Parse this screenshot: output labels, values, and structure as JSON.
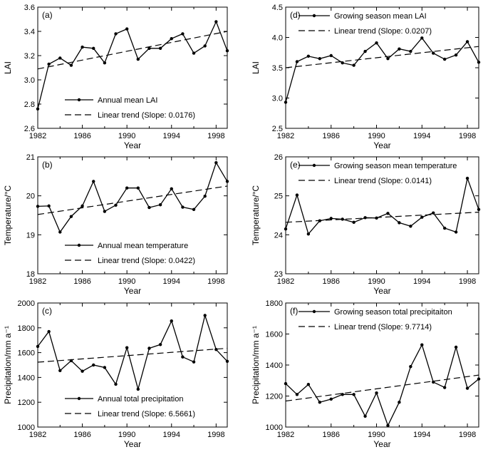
{
  "chart_data": [
    {
      "panel": "(a)",
      "type": "line",
      "xlabel": "Year",
      "ylabel": "LAI",
      "xlim": [
        1982,
        1999
      ],
      "ylim": [
        2.6,
        3.6
      ],
      "xticks": [
        "1982",
        "1986",
        "1990",
        "1994",
        "1998"
      ],
      "yticks": [
        "2.6",
        "2.8",
        "3.0",
        "3.2",
        "3.4",
        "3.6"
      ],
      "legend_position": "bottom-right",
      "series": [
        {
          "name": "Annual mean LAI",
          "style": "line-marker",
          "x": [
            1982,
            1983,
            1984,
            1985,
            1986,
            1987,
            1988,
            1989,
            1990,
            1991,
            1992,
            1993,
            1994,
            1995,
            1996,
            1997,
            1998,
            1999
          ],
          "y": [
            2.76,
            3.13,
            3.18,
            3.12,
            3.27,
            3.26,
            3.14,
            3.38,
            3.42,
            3.17,
            3.26,
            3.26,
            3.34,
            3.38,
            3.22,
            3.28,
            3.48,
            3.24
          ]
        },
        {
          "name": "Linear trend (Slope: 0.0176)",
          "style": "dashed",
          "x": [
            1982,
            1999
          ],
          "y": [
            3.09,
            3.4
          ]
        }
      ]
    },
    {
      "panel": "(d)",
      "type": "line",
      "xlabel": "Year",
      "ylabel": "LAI",
      "xlim": [
        1982,
        1999
      ],
      "ylim": [
        2.5,
        4.5
      ],
      "xticks": [
        "1982",
        "1986",
        "1990",
        "1994",
        "1998"
      ],
      "yticks": [
        "2.5",
        "3.0",
        "3.5",
        "4.0",
        "4.5"
      ],
      "legend_position": "top-right",
      "series": [
        {
          "name": "Growing season mean LAI",
          "style": "line-marker",
          "x": [
            1982,
            1983,
            1984,
            1985,
            1986,
            1987,
            1988,
            1989,
            1990,
            1991,
            1992,
            1993,
            1994,
            1995,
            1996,
            1997,
            1998,
            1999
          ],
          "y": [
            2.93,
            3.6,
            3.69,
            3.65,
            3.7,
            3.58,
            3.54,
            3.77,
            3.91,
            3.65,
            3.81,
            3.77,
            3.99,
            3.74,
            3.64,
            3.71,
            3.93,
            3.59
          ]
        },
        {
          "name": "Linear trend (Slope: 0.0207)",
          "style": "dashed",
          "x": [
            1982,
            1999
          ],
          "y": [
            3.5,
            3.85
          ]
        }
      ]
    },
    {
      "panel": "(b)",
      "type": "line",
      "xlabel": "Year",
      "ylabel": "Temperature/°C",
      "xlim": [
        1982,
        1999
      ],
      "ylim": [
        18,
        21
      ],
      "xticks": [
        "1982",
        "1986",
        "1990",
        "1994",
        "1998"
      ],
      "yticks": [
        "18",
        "19",
        "20",
        "21"
      ],
      "legend_position": "bottom-right",
      "series": [
        {
          "name": "Annual mean temperature",
          "style": "line-marker",
          "x": [
            1982,
            1983,
            1984,
            1985,
            1986,
            1987,
            1988,
            1989,
            1990,
            1991,
            1992,
            1993,
            1994,
            1995,
            1996,
            1997,
            1998,
            1999
          ],
          "y": [
            19.73,
            19.74,
            19.07,
            19.47,
            19.74,
            20.37,
            19.6,
            19.76,
            20.2,
            20.2,
            19.7,
            19.77,
            20.18,
            19.71,
            19.65,
            19.99,
            20.85,
            20.37
          ]
        },
        {
          "name": "Linear trend (Slope: 0.0422)",
          "style": "dashed",
          "x": [
            1982,
            1999
          ],
          "y": [
            19.52,
            20.25
          ]
        }
      ]
    },
    {
      "panel": "(e)",
      "type": "line",
      "xlabel": "Year",
      "ylabel": "Temperature/°C",
      "xlim": [
        1982,
        1999
      ],
      "ylim": [
        23,
        26
      ],
      "xticks": [
        "1982",
        "1986",
        "1990",
        "1994",
        "1998"
      ],
      "yticks": [
        "23",
        "24",
        "25",
        "26"
      ],
      "legend_position": "top-right",
      "series": [
        {
          "name": "Growing season mean temperature",
          "style": "line-marker",
          "x": [
            1982,
            1983,
            1984,
            1985,
            1986,
            1987,
            1988,
            1989,
            1990,
            1991,
            1992,
            1993,
            1994,
            1995,
            1996,
            1997,
            1998,
            1999
          ],
          "y": [
            24.15,
            25.02,
            24.02,
            24.36,
            24.42,
            24.4,
            24.32,
            24.44,
            24.43,
            24.55,
            24.31,
            24.22,
            24.45,
            24.56,
            24.17,
            24.07,
            25.45,
            24.65
          ]
        },
        {
          "name": "Linear trend (Slope: 0.0141)",
          "style": "dashed",
          "x": [
            1982,
            1999
          ],
          "y": [
            24.32,
            24.58
          ]
        }
      ]
    },
    {
      "panel": "(c)",
      "type": "line",
      "xlabel": "Year",
      "ylabel": "Precipitation/mm a⁻¹",
      "xlim": [
        1982,
        1999
      ],
      "ylim": [
        1000,
        2000
      ],
      "xticks": [
        "1982",
        "1986",
        "1990",
        "1994",
        "1998"
      ],
      "yticks": [
        "1000",
        "1200",
        "1400",
        "1600",
        "1800",
        "2000"
      ],
      "legend_position": "bottom-right",
      "series": [
        {
          "name": "Annual total precipitation",
          "style": "line-marker",
          "x": [
            1982,
            1983,
            1984,
            1985,
            1986,
            1987,
            1988,
            1989,
            1990,
            1991,
            1992,
            1993,
            1994,
            1995,
            1996,
            1997,
            1998,
            1999
          ],
          "y": [
            1650,
            1770,
            1455,
            1535,
            1450,
            1500,
            1480,
            1345,
            1640,
            1305,
            1635,
            1665,
            1855,
            1565,
            1525,
            1900,
            1625,
            1530
          ]
        },
        {
          "name": "Linear trend (Slope: 6.5661)",
          "style": "dashed",
          "x": [
            1982,
            1999
          ],
          "y": [
            1523,
            1635
          ]
        }
      ]
    },
    {
      "panel": "(f)",
      "type": "line",
      "xlabel": "Year",
      "ylabel": "Precipitation/mm a⁻¹",
      "xlim": [
        1982,
        1999
      ],
      "ylim": [
        1000,
        1800
      ],
      "xticks": [
        "1982",
        "1986",
        "1990",
        "1994",
        "1998"
      ],
      "yticks": [
        "1000",
        "1200",
        "1400",
        "1600",
        "1800"
      ],
      "legend_position": "top-right",
      "series": [
        {
          "name": "Growing season total precipitaiton",
          "style": "line-marker",
          "x": [
            1982,
            1983,
            1984,
            1985,
            1986,
            1987,
            1988,
            1989,
            1990,
            1991,
            1992,
            1993,
            1994,
            1995,
            1996,
            1997,
            1998,
            1999
          ],
          "y": [
            1280,
            1210,
            1275,
            1160,
            1180,
            1210,
            1210,
            1070,
            1220,
            1010,
            1160,
            1390,
            1530,
            1290,
            1255,
            1515,
            1250,
            1310
          ]
        },
        {
          "name": "Linear trend (Slope: 9.7714)",
          "style": "dashed",
          "x": [
            1982,
            1999
          ],
          "y": [
            1168,
            1335
          ]
        }
      ]
    }
  ]
}
